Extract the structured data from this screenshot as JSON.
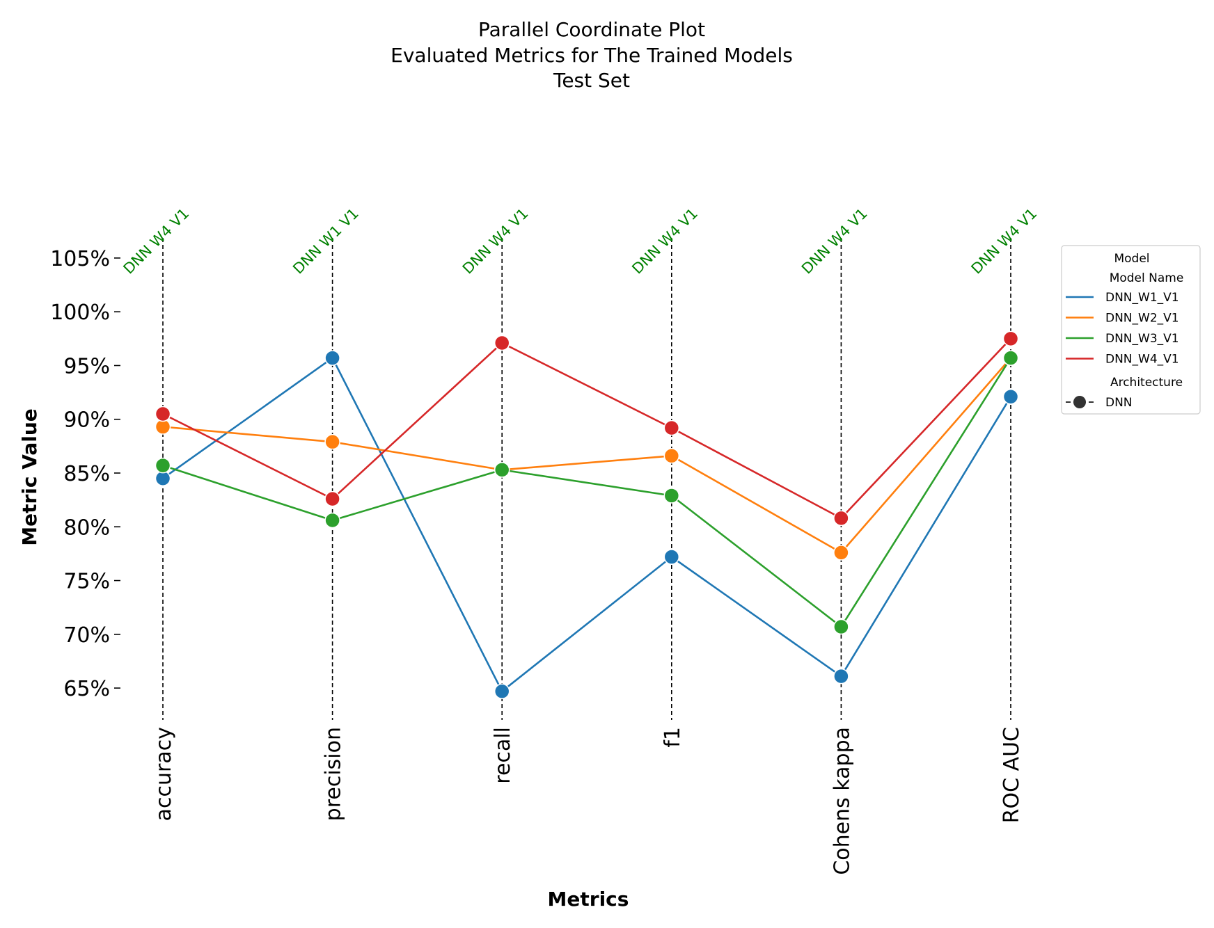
{
  "chart_data": {
    "type": "line",
    "title_lines": [
      "Parallel Coordinate Plot",
      "Evaluated Metrics for The Trained Models",
      "Test Set"
    ],
    "xlabel": "Metrics",
    "ylabel": "Metric Value",
    "categories": [
      "accuracy",
      "precision",
      "recall",
      "f1",
      "Cohens kappa",
      "ROC AUC"
    ],
    "yticks": [
      0.65,
      0.7,
      0.75,
      0.8,
      0.85,
      0.9,
      0.95,
      1.0,
      1.05
    ],
    "ytick_labels": [
      "65%",
      "70%",
      "75%",
      "80%",
      "85%",
      "90%",
      "95%",
      "100%",
      "105%"
    ],
    "ylim": [
      0.63,
      1.07
    ],
    "best_labels": [
      "DNN W4 V1",
      "DNN W1 V1",
      "DNN W4 V1",
      "DNN W4 V1",
      "DNN W4 V1",
      "DNN W4 V1"
    ],
    "series": [
      {
        "name": "DNN_W1_V1",
        "color": "#1f77b4",
        "values": [
          0.845,
          0.957,
          0.647,
          0.772,
          0.661,
          0.921
        ]
      },
      {
        "name": "DNN_W2_V1",
        "color": "#ff7f0e",
        "values": [
          0.893,
          0.879,
          0.853,
          0.866,
          0.776,
          0.957
        ]
      },
      {
        "name": "DNN_W3_V1",
        "color": "#2ca02c",
        "values": [
          0.857,
          0.806,
          0.853,
          0.829,
          0.707,
          0.957
        ]
      },
      {
        "name": "DNN_W4_V1",
        "color": "#d62728",
        "values": [
          0.905,
          0.826,
          0.971,
          0.892,
          0.808,
          0.975
        ]
      }
    ],
    "grid": false,
    "legend": {
      "position": "right",
      "title": "Model",
      "subtitle_series": "Model Name",
      "subtitle_marker": "Architecture",
      "marker_label": "DNN"
    }
  }
}
